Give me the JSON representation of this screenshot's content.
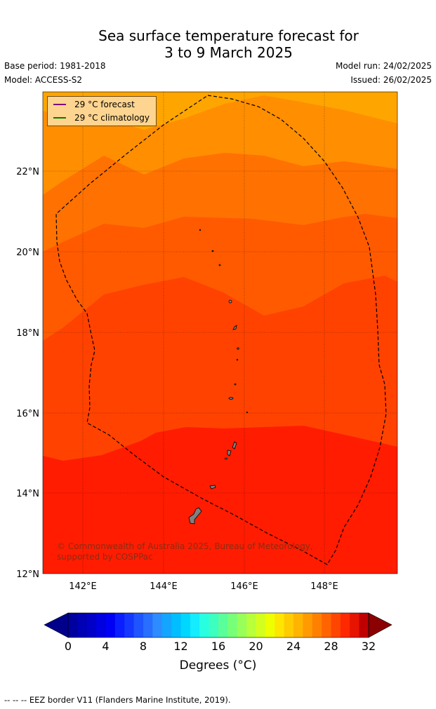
{
  "header": {
    "title_line1": "Sea surface temperature forecast for",
    "title_line2": "3 to 9 March 2025",
    "base_period": "Base period: 1981-2018",
    "model": "Model: ACCESS-S2",
    "model_run": "Model run: 24/02/2025",
    "issued": "Issued: 26/02/2025"
  },
  "map": {
    "lat_labels": [
      "22°N",
      "20°N",
      "18°N",
      "16°N",
      "14°N",
      "12°N"
    ],
    "lon_labels": [
      "142°E",
      "144°E",
      "146°E",
      "148°E"
    ],
    "legend": [
      {
        "label": "29 °C  forecast",
        "color": "#800080"
      },
      {
        "label": "29 °C  climatology",
        "color": "#008000"
      }
    ],
    "credit": "© Commonwealth of Australia 2025, Bureau of Meteorology, supported by COSPPac",
    "colors": {
      "band_30_31": "#ff1c00",
      "band_29_30": "#ff4200",
      "band_28_29": "#ff5a00",
      "band_27_28": "#ff7100",
      "band_26_27": "#ff8e00",
      "band_25_26": "#ffa500",
      "land": "#808080"
    }
  },
  "colorbar": {
    "tick_labels": [
      "0",
      "4",
      "8",
      "12",
      "16",
      "20",
      "24",
      "28",
      "32"
    ],
    "title": "Degrees (°C)",
    "range": [
      0,
      32
    ],
    "step": 1,
    "colors": [
      "#0000a0",
      "#0000b4",
      "#0000c8",
      "#0000e0",
      "#0000f5",
      "#0a1eff",
      "#1438ff",
      "#1e55ff",
      "#286eff",
      "#2d8cff",
      "#14a5ff",
      "#00beff",
      "#00d7ff",
      "#14ecff",
      "#28ffe0",
      "#3cffc0",
      "#5aff9a",
      "#78ff78",
      "#98ff5a",
      "#b8ff3c",
      "#d4ff1e",
      "#eeff00",
      "#ffe600",
      "#ffcc00",
      "#ffb400",
      "#ff9b00",
      "#ff8000",
      "#ff6400",
      "#ff4600",
      "#ff2800",
      "#e61400",
      "#c00000"
    ],
    "under_color": "#00008b",
    "over_color": "#8b0000"
  },
  "footer": {
    "note": "--  --  -- EEZ border V11 (Flanders Marine Institute, 2019)."
  }
}
